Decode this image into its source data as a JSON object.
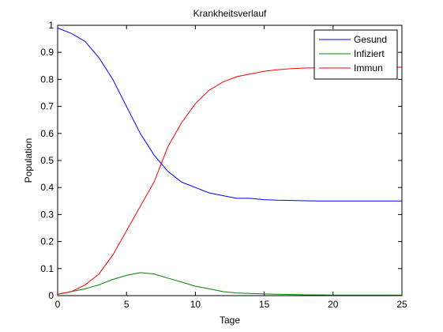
{
  "chart_data": {
    "type": "line",
    "title": "Krankheitsverlauf",
    "xlabel": "Tage",
    "ylabel": "Population",
    "xlim": [
      0,
      25
    ],
    "ylim": [
      0,
      1
    ],
    "xticks": [
      "0",
      "5",
      "10",
      "15",
      "20",
      "25"
    ],
    "yticks": [
      "0",
      "0.1",
      "0.2",
      "0.3",
      "0.4",
      "0.5",
      "0.6",
      "0.7",
      "0.8",
      "0.9",
      "1"
    ],
    "grid": false,
    "legend_position": "top-right",
    "x": [
      0,
      1,
      2,
      3,
      4,
      5,
      6,
      7,
      8,
      9,
      10,
      11,
      12,
      13,
      14,
      15,
      16,
      17,
      18,
      19,
      20,
      21,
      22,
      23,
      24,
      25
    ],
    "series": [
      {
        "name": "Gesund",
        "color": "#0000ff",
        "values": [
          0.99,
          0.97,
          0.94,
          0.88,
          0.8,
          0.7,
          0.6,
          0.52,
          0.46,
          0.42,
          0.4,
          0.38,
          0.37,
          0.36,
          0.36,
          0.355,
          0.353,
          0.352,
          0.351,
          0.35,
          0.35,
          0.35,
          0.35,
          0.35,
          0.35,
          0.35
        ]
      },
      {
        "name": "Infiziert",
        "color": "#008000",
        "values": [
          0.005,
          0.015,
          0.025,
          0.04,
          0.06,
          0.075,
          0.085,
          0.08,
          0.065,
          0.05,
          0.035,
          0.025,
          0.015,
          0.01,
          0.008,
          0.006,
          0.005,
          0.004,
          0.003,
          0.003,
          0.002,
          0.002,
          0.002,
          0.002,
          0.002,
          0.002
        ]
      },
      {
        "name": "Immun",
        "color": "#ff0000",
        "values": [
          0.005,
          0.015,
          0.04,
          0.08,
          0.15,
          0.24,
          0.33,
          0.42,
          0.55,
          0.64,
          0.71,
          0.76,
          0.79,
          0.81,
          0.82,
          0.83,
          0.836,
          0.84,
          0.842,
          0.843,
          0.844,
          0.845,
          0.845,
          0.845,
          0.845,
          0.845
        ]
      }
    ]
  }
}
